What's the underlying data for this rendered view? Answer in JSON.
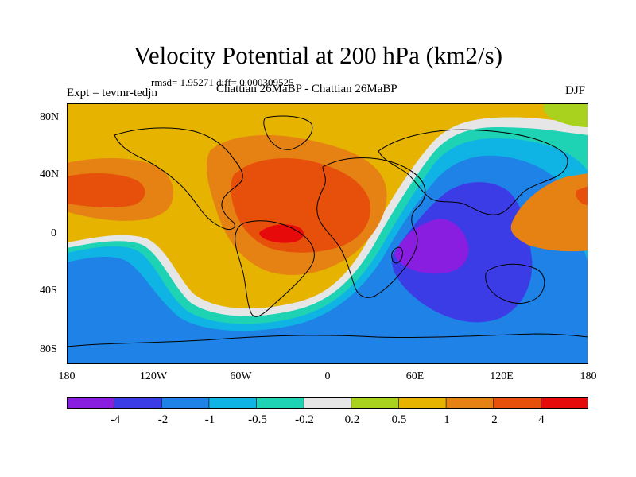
{
  "title": "Velocity Potential at 200 hPa (km2/s)",
  "stats": "rmsd= 1.95271 diff= 0.000309525",
  "left_label": "Expt = tevmr-tedjn",
  "center_label": "Chattian  26MaBP - Chattian  26MaBP",
  "right_label": "DJF",
  "y_ticks": [
    "80N",
    "40N",
    "0",
    "40S",
    "80S"
  ],
  "x_ticks": [
    "180",
    "120W",
    "60W",
    "0",
    "60E",
    "120E",
    "180"
  ],
  "colorbar": {
    "labels": [
      "-4",
      "-2",
      "-1",
      "-0.5",
      "-0.2",
      "0.2",
      "0.5",
      "1",
      "2",
      "4"
    ],
    "colors": [
      "#8a1ee0",
      "#3c3ce6",
      "#1e82e6",
      "#10b4e4",
      "#1ed2b4",
      "#e6e6e6",
      "#a8d21e",
      "#e6b400",
      "#e68214",
      "#e6500a",
      "#e60a0a"
    ]
  }
}
